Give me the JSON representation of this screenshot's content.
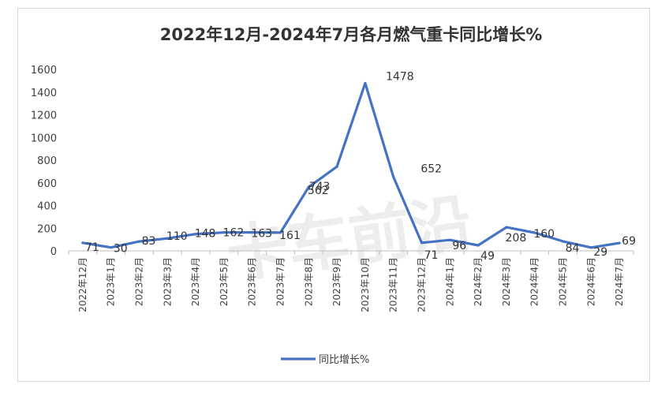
{
  "chart_data": {
    "type": "line",
    "title": "2022年12月-2024年7月各月燃气重卡同比增长%",
    "categories": [
      "2022年12月",
      "2023年1月",
      "2023年2月",
      "2023年3月",
      "2023年4月",
      "2023年5月",
      "2023年6月",
      "2023年7月",
      "2023年8月",
      "2023年9月",
      "2023年10月",
      "2023年11月",
      "2023年12月",
      "2024年1月",
      "2024年2月",
      "2024年3月",
      "2024年4月",
      "2024年5月",
      "2024年6月",
      "2024年7月"
    ],
    "series": [
      {
        "name": "同比增长%",
        "values": [
          71,
          30,
          83,
          110,
          148,
          162,
          163,
          161,
          562,
          743,
          1478,
          652,
          71,
          96,
          49,
          208,
          160,
          84,
          29,
          69
        ],
        "labels": [
          "71",
          "30",
          "83",
          "110",
          "148",
          "162",
          "163",
          "161",
          "562",
          "743",
          "1478",
          "652",
          "71",
          "96",
          "49",
          "208",
          "160",
          "84",
          "29",
          "69"
        ],
        "color": "#4472c4"
      }
    ],
    "ylim": [
      0,
      1600
    ],
    "yticks": [
      "0",
      "200",
      "400",
      "600",
      "800",
      "1000",
      "1200",
      "1400",
      "1600"
    ],
    "grid": false,
    "legend": "bottom"
  },
  "watermark": "卡车前沿"
}
